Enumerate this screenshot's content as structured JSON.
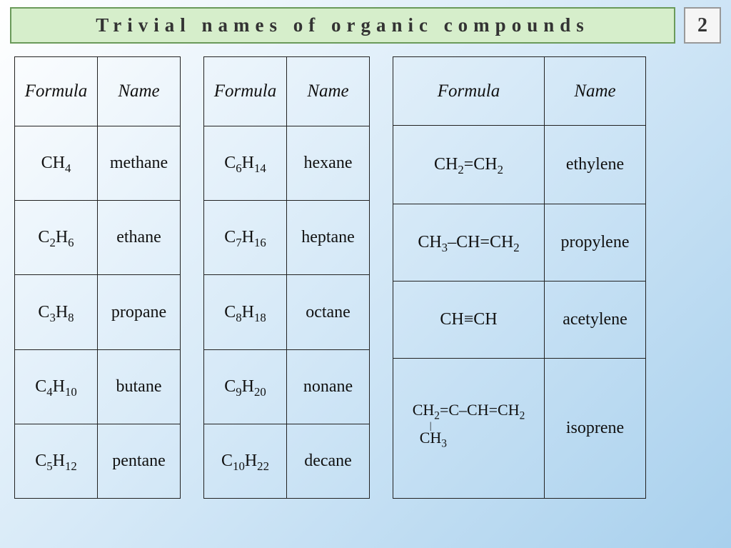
{
  "title": "Trivial names of organic compounds",
  "page_number": "2",
  "colors": {
    "title_bg": "#d6eecb",
    "title_border": "#6a9a5a",
    "pagenum_bg": "#f5f5f5",
    "pagenum_border": "#999999",
    "cell_border": "#222222",
    "text": "#111111",
    "bg_gradient_start": "#ffffff",
    "bg_gradient_end": "#a8d0ed"
  },
  "tables": {
    "t1": {
      "headers": {
        "formula": "Formula",
        "name": "Name"
      },
      "rows": [
        {
          "formula_html": "CH<sub>4</sub>",
          "name": "methane"
        },
        {
          "formula_html": "C<sub>2</sub>H<sub>6</sub>",
          "name": "ethane"
        },
        {
          "formula_html": "C<sub>3</sub>H<sub>8</sub>",
          "name": "propane"
        },
        {
          "formula_html": "C<sub>4</sub>H<sub>10</sub>",
          "name": "butane"
        },
        {
          "formula_html": "C<sub>5</sub>H<sub>12</sub>",
          "name": "pentane"
        }
      ]
    },
    "t2": {
      "headers": {
        "formula": "Formula",
        "name": "Name"
      },
      "rows": [
        {
          "formula_html": "C<sub>6</sub>H<sub>14</sub>",
          "name": "hexane"
        },
        {
          "formula_html": "C<sub>7</sub>H<sub>16</sub>",
          "name": "heptane"
        },
        {
          "formula_html": "C<sub>8</sub>H<sub>18</sub>",
          "name": "octane"
        },
        {
          "formula_html": "C<sub>9</sub>H<sub>20</sub>",
          "name": "nonane"
        },
        {
          "formula_html": "C<sub>10</sub>H<sub>22</sub>",
          "name": "decane"
        }
      ]
    },
    "t3": {
      "headers": {
        "formula": "Formula",
        "name": "Name"
      },
      "rows": [
        {
          "formula_html": "CH<sub>2</sub>=CH<sub>2</sub>",
          "name": "ethylene"
        },
        {
          "formula_html": "CH<sub>3</sub>–CH=CH<sub>2</sub>",
          "name": "propylene"
        },
        {
          "formula_html": "CH≡CH",
          "name": "acetylene"
        },
        {
          "formula_html": "CH<sub>2</sub>=C–CH=CH<sub>2</sub><br><span style='position:relative;left:24px;top:-6px;font-size:14px'>|</span><br><span style='position:relative;left:10px;top:-10px'>CH<sub>3</sub></span>",
          "name": "isoprene"
        }
      ]
    }
  }
}
